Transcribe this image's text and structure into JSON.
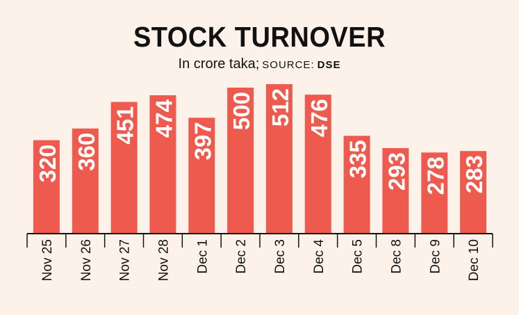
{
  "header": {
    "title": "STOCK TURNOVER",
    "subtitle": "In crore taka;",
    "source_label": "SOURCE:",
    "source_name": "DSE"
  },
  "colors": {
    "bar": "#ef5a4f",
    "bar_label": "#ffffff",
    "axis": "#111111",
    "background": "#fdf2ea"
  },
  "chart_data": {
    "type": "bar",
    "title": "STOCK TURNOVER",
    "subtitle": "In crore taka; SOURCE: DSE",
    "xlabel": "",
    "ylabel": "",
    "categories": [
      "Nov 25",
      "Nov 26",
      "Nov 27",
      "Nov 28",
      "Dec 1",
      "Dec 2",
      "Dec 3",
      "Dec 4",
      "Dec 5",
      "Dec 8",
      "Dec 9",
      "Dec 10"
    ],
    "values": [
      320,
      360,
      451,
      474,
      397,
      500,
      512,
      476,
      335,
      293,
      278,
      283
    ],
    "ylim": [
      0,
      512
    ],
    "grid": false,
    "legend": "none"
  }
}
